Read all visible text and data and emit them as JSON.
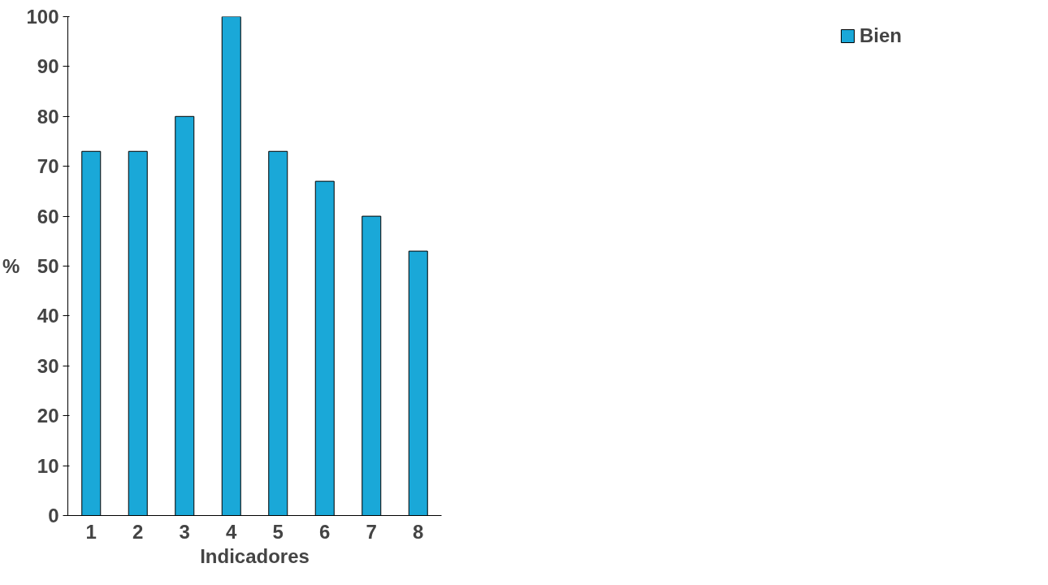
{
  "chart_data": {
    "type": "bar",
    "xlabel": "Indicadores",
    "ylabel": "%",
    "categories": [
      "1",
      "2",
      "3",
      "4",
      "5",
      "6",
      "7",
      "8"
    ],
    "series": [
      {
        "name": "Bien",
        "color": "#1aa8d8",
        "values": [
          73,
          73,
          80,
          100,
          73,
          67,
          60,
          53
        ]
      }
    ],
    "ylim": [
      0,
      100
    ],
    "yticks": [
      0,
      10,
      20,
      30,
      40,
      50,
      60,
      70,
      80,
      90,
      100
    ],
    "grid": false,
    "legend": "right"
  }
}
